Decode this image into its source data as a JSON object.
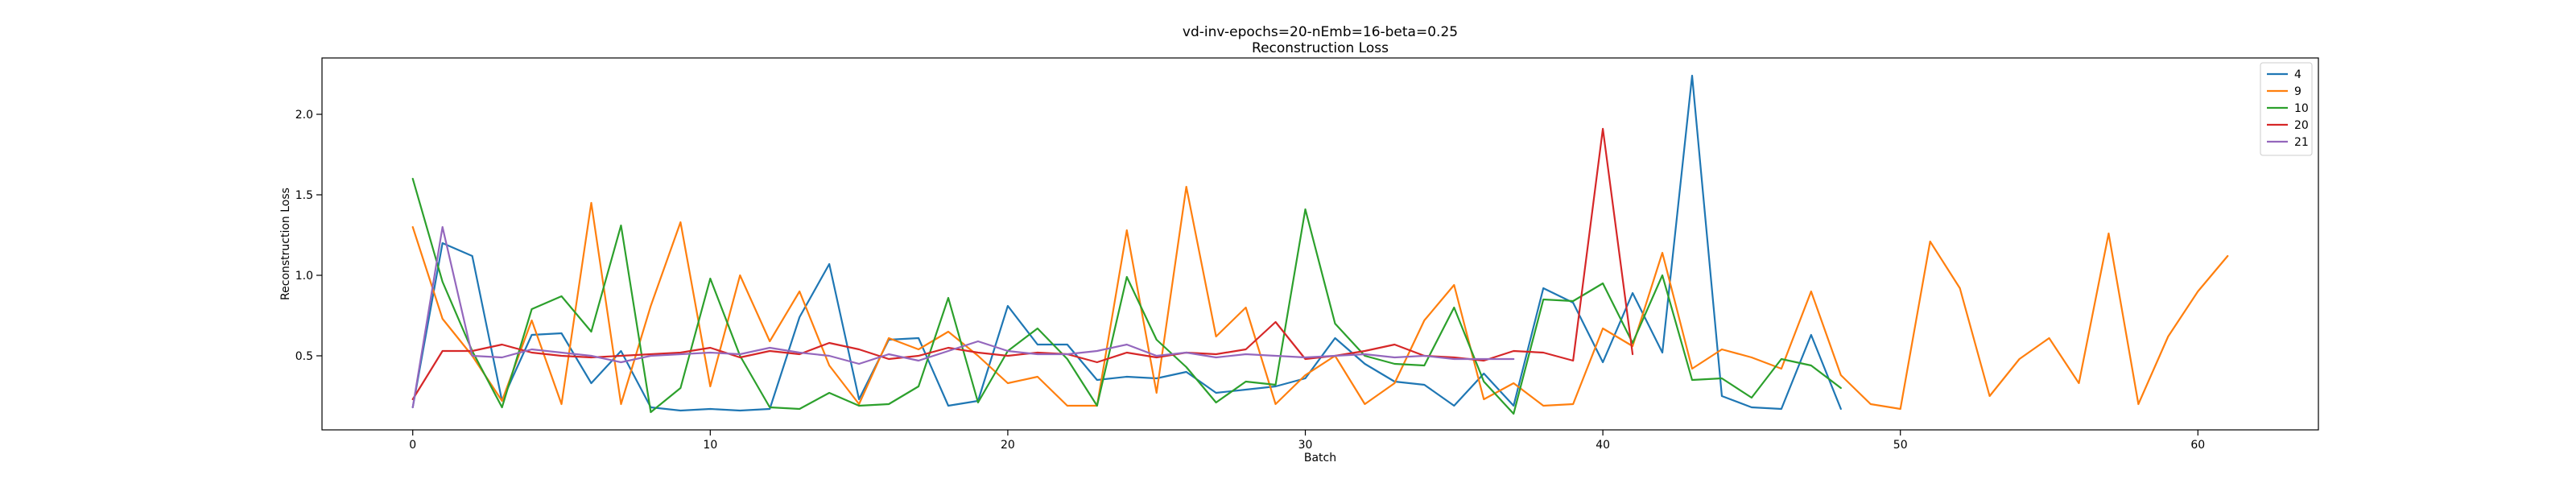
{
  "chart_data": {
    "type": "line",
    "title": "vd-inv-epochs=20-nEmb=16-beta=0.25",
    "subtitle": "Reconstruction Loss",
    "xlabel": "Batch",
    "ylabel": "Reconstruction Loss",
    "xlim": [
      -3.05,
      64.05
    ],
    "ylim": [
      0.04,
      2.35
    ],
    "xticks": [
      0,
      10,
      20,
      30,
      40,
      50,
      60
    ],
    "yticks": [
      0.5,
      1.0,
      1.5,
      2.0
    ],
    "ytick_labels": [
      "0.5",
      "1.0",
      "1.5",
      "2.0"
    ],
    "grid": false,
    "legend_position": "top-right",
    "series": [
      {
        "name": "4",
        "color": "#1f77b4",
        "values": [
          0.18,
          1.2,
          1.12,
          0.22,
          0.63,
          0.64,
          0.33,
          0.53,
          0.18,
          0.16,
          0.17,
          0.16,
          0.17,
          0.74,
          1.07,
          0.23,
          0.6,
          0.61,
          0.19,
          0.22,
          0.81,
          0.57,
          0.57,
          0.35,
          0.37,
          0.36,
          0.4,
          0.27,
          0.29,
          0.31,
          0.36,
          0.61,
          0.45,
          0.34,
          0.32,
          0.19,
          0.39,
          0.19,
          0.92,
          0.83,
          0.46,
          0.89,
          0.52,
          2.24,
          0.25,
          0.18,
          0.17,
          0.63,
          0.17
        ]
      },
      {
        "name": "9",
        "color": "#ff7f0e",
        "values": [
          1.3,
          0.73,
          0.5,
          0.22,
          0.72,
          0.2,
          1.45,
          0.2,
          0.81,
          1.33,
          0.31,
          1.0,
          0.59,
          0.9,
          0.44,
          0.2,
          0.61,
          0.54,
          0.65,
          0.5,
          0.33,
          0.37,
          0.19,
          0.19,
          1.28,
          0.27,
          1.55,
          0.62,
          0.8,
          0.2,
          0.38,
          0.5,
          0.2,
          0.33,
          0.72,
          0.94,
          0.23,
          0.33,
          0.19,
          0.2,
          0.67,
          0.56,
          1.14,
          0.42,
          0.54,
          0.49,
          0.42,
          0.9,
          0.38,
          0.2,
          0.17,
          1.21,
          0.92,
          0.25,
          0.48,
          0.61,
          0.33,
          1.26,
          0.2,
          0.62,
          0.9,
          1.12
        ]
      },
      {
        "name": "10",
        "color": "#2ca02c",
        "values": [
          1.6,
          0.96,
          0.53,
          0.18,
          0.79,
          0.87,
          0.65,
          1.31,
          0.15,
          0.3,
          0.98,
          0.5,
          0.18,
          0.17,
          0.27,
          0.19,
          0.2,
          0.31,
          0.86,
          0.21,
          0.53,
          0.67,
          0.48,
          0.19,
          0.99,
          0.6,
          0.43,
          0.21,
          0.34,
          0.32,
          1.41,
          0.7,
          0.5,
          0.45,
          0.44,
          0.8,
          0.34,
          0.14,
          0.85,
          0.84,
          0.95,
          0.58,
          1.0,
          0.35,
          0.36,
          0.24,
          0.48,
          0.44,
          0.3
        ]
      },
      {
        "name": "20",
        "color": "#d62728",
        "values": [
          0.23,
          0.53,
          0.53,
          0.57,
          0.52,
          0.5,
          0.49,
          0.5,
          0.51,
          0.52,
          0.55,
          0.49,
          0.53,
          0.51,
          0.58,
          0.54,
          0.48,
          0.5,
          0.55,
          0.52,
          0.5,
          0.52,
          0.51,
          0.46,
          0.52,
          0.49,
          0.52,
          0.51,
          0.54,
          0.71,
          0.48,
          0.5,
          0.53,
          0.57,
          0.5,
          0.49,
          0.47,
          0.53,
          0.52,
          0.47,
          1.91,
          0.51
        ]
      },
      {
        "name": "21",
        "color": "#9467bd",
        "values": [
          0.18,
          1.3,
          0.5,
          0.49,
          0.54,
          0.52,
          0.5,
          0.46,
          0.5,
          0.51,
          0.52,
          0.51,
          0.55,
          0.52,
          0.5,
          0.45,
          0.51,
          0.47,
          0.53,
          0.59,
          0.53,
          0.51,
          0.51,
          0.53,
          0.57,
          0.5,
          0.52,
          0.49,
          0.51,
          0.5,
          0.49,
          0.5,
          0.51,
          0.49,
          0.5,
          0.48,
          0.48,
          0.48
        ]
      }
    ]
  }
}
